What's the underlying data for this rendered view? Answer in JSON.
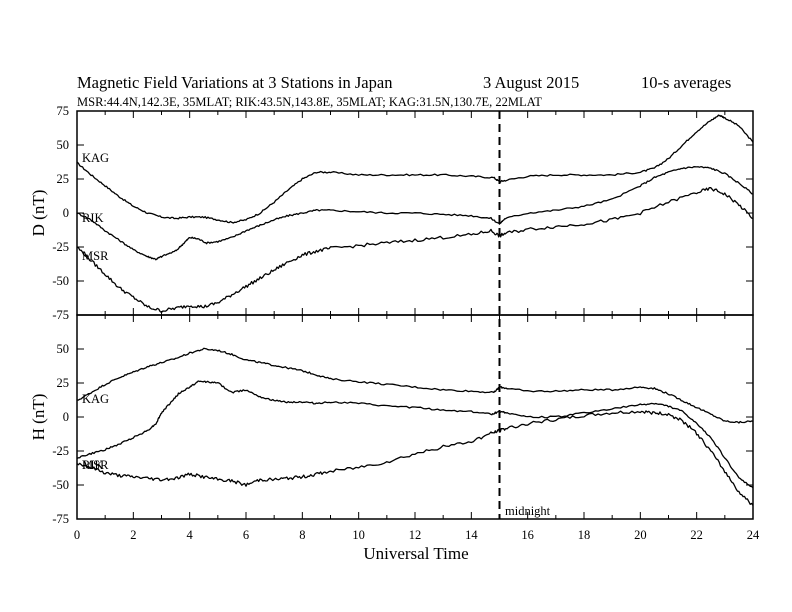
{
  "header": {
    "title": "Magnetic Field Variations at 3 Stations in Japan",
    "date": "3   August  2015",
    "averaging": "10-s averages",
    "stations": "MSR:44.4N,142.3E, 35MLAT;  RIK:43.5N,143.8E, 35MLAT;  KAG:31.5N,130.7E, 22MLAT"
  },
  "chart_data": [
    {
      "type": "line",
      "panel": "top",
      "ylabel": "D (nT)",
      "xlabel": "",
      "xlim": [
        0,
        24
      ],
      "ylim": [
        -75,
        75
      ],
      "yticks": [
        -75,
        -50,
        -25,
        0,
        25,
        50,
        75
      ],
      "xticks": [
        0,
        2,
        4,
        6,
        8,
        10,
        12,
        14,
        16,
        18,
        20,
        22,
        24
      ],
      "series": [
        {
          "name": "KAG",
          "x": [
            0,
            0.5,
            1,
            1.5,
            2,
            2.5,
            3,
            3.5,
            4,
            4.5,
            5,
            5.5,
            6,
            6.5,
            7,
            7.5,
            8,
            8.5,
            9,
            10,
            11,
            12,
            13,
            14,
            14.8,
            15,
            15.2,
            16,
            17,
            18,
            19,
            20,
            20.5,
            21,
            21.5,
            22,
            22.5,
            22.8,
            23,
            23.5,
            24
          ],
          "y": [
            37,
            28,
            20,
            12,
            5,
            0,
            -3,
            -4,
            -3,
            -3,
            -5,
            -7,
            -5,
            0,
            8,
            17,
            25,
            30,
            30,
            28,
            28,
            28,
            28,
            27,
            26,
            23,
            24,
            27,
            28,
            28,
            28,
            30,
            33,
            40,
            50,
            60,
            68,
            72,
            70,
            64,
            52
          ]
        },
        {
          "name": "RIK",
          "x": [
            0,
            0.5,
            1,
            1.5,
            2,
            2.5,
            2.8,
            3,
            3.5,
            3.8,
            4,
            4.3,
            4.6,
            5,
            5.5,
            6,
            6.5,
            7,
            7.5,
            8,
            8.5,
            9,
            10,
            11,
            12,
            13,
            14,
            14.7,
            15,
            15.2,
            16,
            17,
            18,
            19,
            20,
            20.5,
            21,
            21.5,
            22,
            22.5,
            23,
            23.5,
            24
          ],
          "y": [
            0,
            -5,
            -13,
            -20,
            -27,
            -32,
            -34,
            -32,
            -28,
            -22,
            -18,
            -19,
            -22,
            -21,
            -18,
            -13,
            -9,
            -5,
            -2,
            0,
            2,
            2,
            1,
            0,
            0,
            -1,
            -2,
            -4,
            -8,
            -4,
            0,
            2,
            5,
            10,
            20,
            26,
            30,
            33,
            34,
            33,
            29,
            22,
            14
          ]
        },
        {
          "name": "MSR",
          "x": [
            0,
            0.5,
            1,
            1.5,
            2,
            2.5,
            3,
            3.5,
            4,
            4.5,
            5,
            5.5,
            6,
            6.5,
            7,
            7.5,
            8,
            8.5,
            9,
            10,
            11,
            12,
            13,
            14,
            14.7,
            15,
            15.2,
            16,
            17,
            18,
            19,
            20,
            21,
            22,
            22.5,
            23,
            23.5,
            24
          ],
          "y": [
            -25,
            -35,
            -45,
            -55,
            -62,
            -69,
            -72,
            -70,
            -68,
            -69,
            -66,
            -60,
            -54,
            -48,
            -42,
            -36,
            -31,
            -28,
            -26,
            -24,
            -22,
            -20,
            -18,
            -16,
            -13,
            -17,
            -15,
            -12,
            -10,
            -8,
            -5,
            0,
            8,
            15,
            18,
            14,
            6,
            -4
          ]
        }
      ]
    },
    {
      "type": "line",
      "panel": "bottom",
      "ylabel": "H (nT)",
      "xlabel": "Universal Time",
      "xlim": [
        0,
        24
      ],
      "ylim": [
        -75,
        75
      ],
      "yticks": [
        -75,
        -50,
        -25,
        0,
        25,
        50
      ],
      "xticks": [
        0,
        2,
        4,
        6,
        8,
        10,
        12,
        14,
        16,
        18,
        20,
        22,
        24
      ],
      "annotation": "midnight",
      "series": [
        {
          "name": "KAG",
          "x": [
            0,
            0.5,
            1,
            1.5,
            2,
            2.5,
            3,
            3.5,
            4,
            4.5,
            5,
            5.5,
            6,
            6.5,
            7,
            7.5,
            8,
            8.5,
            9,
            10,
            11,
            12,
            13,
            14,
            14.8,
            15,
            15.3,
            16,
            17,
            18,
            19,
            20,
            20.5,
            21,
            21.5,
            22,
            22.5,
            23,
            23.5,
            24
          ],
          "y": [
            12,
            18,
            24,
            29,
            33,
            37,
            40,
            43,
            47,
            50,
            49,
            46,
            42,
            40,
            38,
            36,
            34,
            31,
            28,
            26,
            24,
            22,
            20,
            19,
            18,
            22,
            21,
            19,
            19,
            20,
            20,
            22,
            21,
            17,
            12,
            7,
            2,
            -3,
            -4,
            -3
          ]
        },
        {
          "name": "RIK",
          "x": [
            0,
            0.5,
            1,
            1.5,
            2,
            2.5,
            2.8,
            3,
            3.3,
            3.6,
            4,
            4.3,
            4.6,
            5,
            5.5,
            6,
            6.5,
            7,
            7.5,
            8,
            8.5,
            9,
            10,
            11,
            12,
            13,
            14,
            14.7,
            15,
            15.3,
            16,
            17,
            18,
            19,
            20,
            20.5,
            21,
            21.5,
            22,
            22.5,
            23,
            23.5,
            24
          ],
          "y": [
            -30,
            -27,
            -24,
            -20,
            -15,
            -10,
            -5,
            3,
            10,
            17,
            22,
            26,
            26,
            25,
            18,
            20,
            15,
            12,
            11,
            11,
            10,
            11,
            10,
            8,
            7,
            5,
            4,
            2,
            4,
            3,
            0,
            0,
            3,
            6,
            9,
            10,
            8,
            4,
            -5,
            -15,
            -30,
            -45,
            -52
          ]
        },
        {
          "name": "MSR",
          "x": [
            0,
            0.5,
            1,
            1.5,
            2,
            2.5,
            3,
            3.5,
            4,
            4.5,
            5,
            5.5,
            6,
            6.5,
            7,
            7.5,
            8,
            8.5,
            9,
            10,
            11,
            12,
            13,
            14,
            14.7,
            15,
            15.3,
            16,
            17,
            18,
            19,
            20,
            20.5,
            21,
            21.5,
            22,
            22.5,
            23,
            23.5,
            24
          ],
          "y": [
            -34,
            -37,
            -41,
            -43,
            -44,
            -45,
            -46,
            -45,
            -42,
            -44,
            -46,
            -47,
            -50,
            -46,
            -46,
            -45,
            -44,
            -42,
            -40,
            -37,
            -33,
            -27,
            -22,
            -18,
            -12,
            -10,
            -8,
            -5,
            -2,
            1,
            3,
            4,
            3,
            2,
            -3,
            -12,
            -25,
            -40,
            -55,
            -65
          ]
        }
      ]
    }
  ]
}
